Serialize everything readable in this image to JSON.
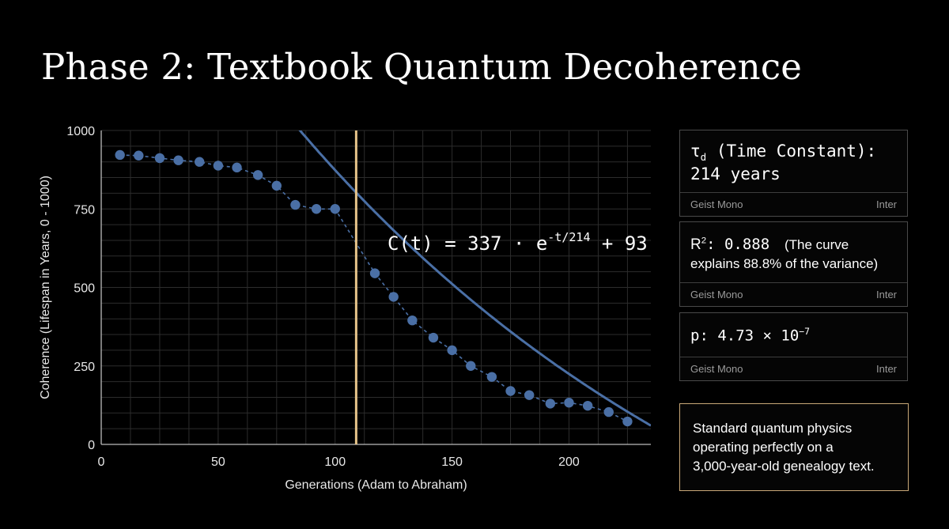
{
  "title": "Phase 2: Textbook Quantum Decoherence",
  "chart_data": {
    "type": "scatter",
    "title": "",
    "xlabel": "Generations (Adam to Abraham)",
    "ylabel": "Coherence (Lifespan in Years, 0 - 1000)",
    "xlim": [
      0,
      235
    ],
    "ylim": [
      0,
      1000
    ],
    "xticks": [
      0,
      50,
      100,
      150,
      200
    ],
    "yticks": [
      0,
      250,
      500,
      750,
      1000
    ],
    "grid": true,
    "colors": {
      "points": "#4a6fa5",
      "fit_curve": "#4a6fa5",
      "marker_line": "#e7c48a",
      "grid": "#2c2c2c"
    },
    "series": [
      {
        "kind": "points_with_dashed_trend",
        "x": [
          8,
          16,
          25,
          33,
          42,
          50,
          58,
          67,
          75,
          83,
          92,
          100,
          117,
          125,
          133,
          142,
          150,
          158,
          167,
          175,
          183,
          192,
          200,
          208,
          217,
          225
        ],
        "y": [
          922,
          920,
          912,
          905,
          900,
          888,
          882,
          858,
          824,
          763,
          750,
          750,
          545,
          470,
          395,
          340,
          300,
          250,
          215,
          170,
          157,
          130,
          133,
          123,
          103,
          73
        ]
      },
      {
        "kind": "fit_curve",
        "formula": {
          "a": 337,
          "tau": 214,
          "c": 93
        }
      }
    ],
    "vertical_marker_x": 109,
    "annotation": {
      "lhs": "C(t) = 337",
      "base": "e",
      "exponent": "-t/214",
      "rhs": "+ 93"
    }
  },
  "cards": [
    {
      "line1_symbol": "τ",
      "line1_sub": "d",
      "line1_rest": " (Time Constant):",
      "line2": "214 years",
      "foot_left": "Geist Mono",
      "foot_right": "Inter"
    },
    {
      "lead_r": "R",
      "lead_sup": "2",
      "lead_rest": ": 0.888",
      "desc1": "(The curve",
      "desc2": "explains 88.8% of the variance)",
      "foot_left": "Geist Mono",
      "foot_right": "Inter"
    },
    {
      "p_lead": "p: 4.73 × 10",
      "p_sup": "−7",
      "foot_left": "Geist Mono",
      "foot_right": "Inter"
    }
  ],
  "note": {
    "lines": [
      "Standard quantum physics",
      "operating perfectly on a",
      "3,000-year-old genealogy text."
    ]
  }
}
